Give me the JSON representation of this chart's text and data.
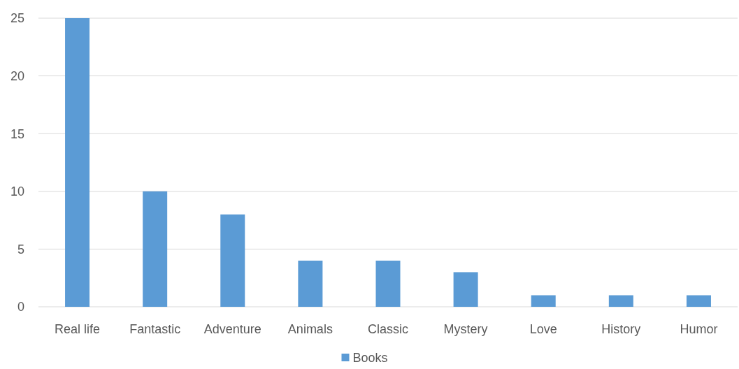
{
  "chart_data": {
    "type": "bar",
    "categories": [
      "Real life",
      "Fantastic",
      "Adventure",
      "Animals",
      "Classic",
      "Mystery",
      "Love",
      "History",
      "Humor"
    ],
    "series": [
      {
        "name": "Books",
        "color": "#5b9bd5",
        "values": [
          25,
          10,
          8,
          4,
          4,
          3,
          1,
          1,
          1
        ]
      }
    ],
    "ylim": [
      0,
      25
    ],
    "yticks": [
      0,
      5,
      10,
      15,
      20,
      25
    ],
    "grid": "y",
    "legend": "bottom"
  }
}
